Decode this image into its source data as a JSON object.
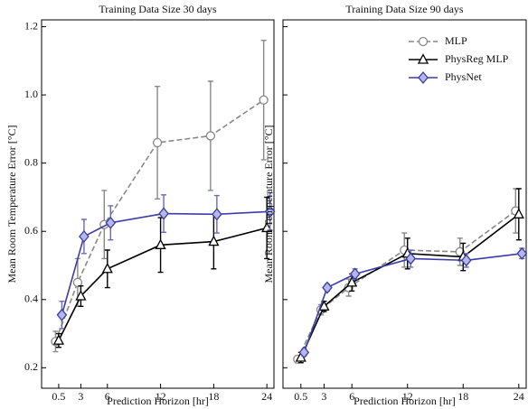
{
  "chart_data": [
    {
      "type": "line",
      "title": "Training Data Size 30 days",
      "x_label": "Prediction Horizon [hr]",
      "y_label": "Mean Room Temperature Error [°C]",
      "x": [
        0.5,
        3,
        6,
        12,
        18,
        24
      ],
      "xlim": [
        -1.43,
        24.8
      ],
      "xticks": [
        0.5,
        3,
        6,
        12,
        18,
        24
      ],
      "ylim": [
        0.14,
        1.22
      ],
      "yticks": [
        0.2,
        0.4,
        0.6,
        0.8,
        {
          "value": 1,
          "label": "1.0"
        },
        1.2
      ],
      "ytick_labels": true,
      "series": [
        {
          "color": "#888888",
          "marker": "circle",
          "marker_fill": "#ffffff",
          "dashed": true,
          "values": [
            0.277,
            0.45,
            0.62,
            0.86,
            0.88,
            0.985
          ],
          "errors": [
            0.03,
            0.07,
            0.1,
            0.165,
            0.16,
            0.175
          ]
        },
        {
          "color": "#000000",
          "marker": "triangle",
          "marker_fill": "#ffffff",
          "dashed": false,
          "values": [
            0.28,
            0.41,
            0.49,
            0.56,
            0.57,
            0.61
          ],
          "errors": [
            0.02,
            0.03,
            0.055,
            0.08,
            0.08,
            0.09
          ]
        },
        {
          "color": "#3c3ca8",
          "marker": "diamond",
          "marker_fill": "#b4b8e8",
          "dashed": false,
          "values": [
            0.355,
            0.585,
            0.625,
            0.652,
            0.65,
            0.658
          ],
          "errors": [
            0.04,
            0.05,
            0.05,
            0.055,
            0.055,
            0.055
          ]
        }
      ]
    },
    {
      "type": "line",
      "title": "Training Data Size 90 days",
      "x_label": "Prediction Horizon [hr]",
      "y_label": "Mean Room Temperature Error [°C]",
      "x": [
        0.5,
        3,
        6,
        12,
        18,
        24
      ],
      "xlim": [
        -1.43,
        24.8
      ],
      "xticks": [
        0.5,
        3,
        6,
        12,
        18,
        24
      ],
      "ylim": [
        0.14,
        1.22
      ],
      "yticks": [
        0.2,
        0.4,
        0.6,
        0.8,
        1,
        1.2
      ],
      "ytick_labels": false,
      "legend": "upper right",
      "series": [
        {
          "name": "MLP",
          "color": "#888888",
          "marker": "circle",
          "marker_fill": "#ffffff",
          "dashed": true,
          "values": [
            0.225,
            0.37,
            0.435,
            0.545,
            0.54,
            0.66
          ],
          "errors": [
            0.01,
            0.015,
            0.025,
            0.05,
            0.04,
            0.065
          ]
        },
        {
          "name": "PhysReg MLP",
          "color": "#000000",
          "marker": "triangle",
          "marker_fill": "#ffffff",
          "dashed": false,
          "values": [
            0.23,
            0.38,
            0.45,
            0.535,
            0.525,
            0.65
          ],
          "errors": [
            0.015,
            0.015,
            0.025,
            0.045,
            0.04,
            0.075
          ]
        },
        {
          "name": "PhysNet",
          "color": "#3c3ca8",
          "marker": "diamond",
          "marker_fill": "#b4b8e8",
          "dashed": false,
          "values": [
            0.245,
            0.435,
            0.475,
            0.52,
            0.515,
            0.535
          ],
          "errors": [
            0.01,
            0.01,
            0.015,
            0.025,
            0.02,
            0.015
          ]
        }
      ]
    }
  ]
}
